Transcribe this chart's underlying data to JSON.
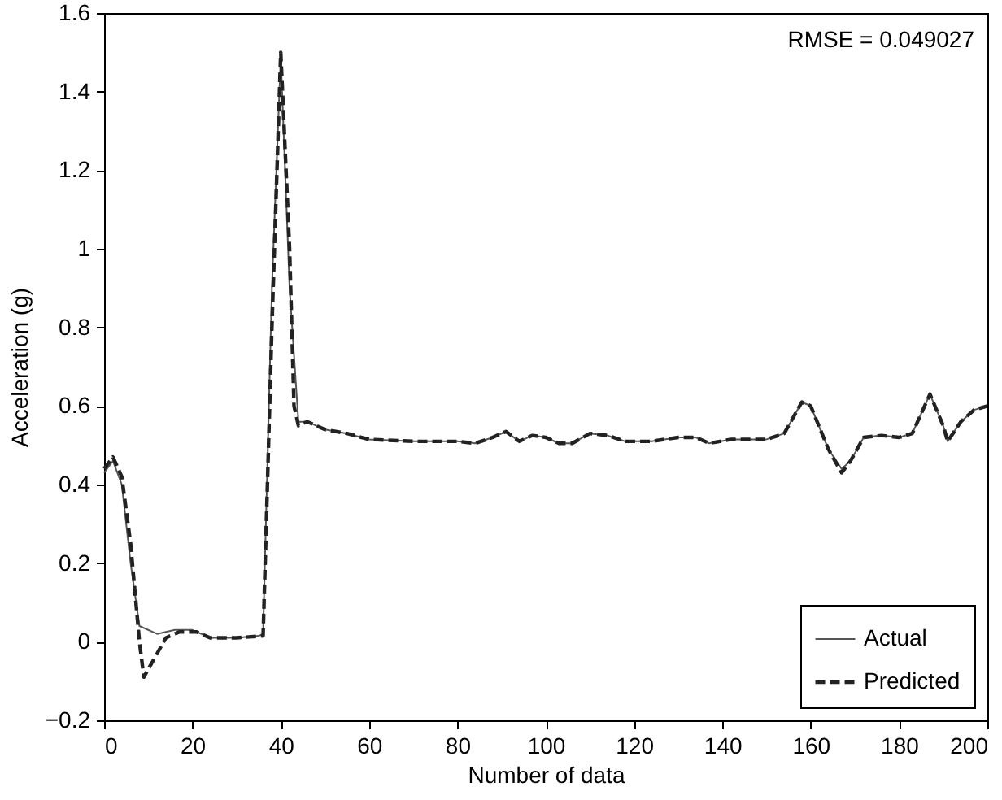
{
  "chart_data": {
    "type": "line",
    "xlabel": "Number of data",
    "ylabel": "Acceleration (g)",
    "xlim": [
      0,
      200
    ],
    "ylim": [
      -0.2,
      1.6
    ],
    "xticks": [
      0,
      20,
      40,
      60,
      80,
      100,
      120,
      140,
      160,
      180,
      200
    ],
    "yticks": [
      -0.2,
      0,
      0.2,
      0.4,
      0.6,
      0.8,
      1,
      1.2,
      1.4,
      1.6
    ],
    "legend": "bottom right",
    "annotations": [
      "RMSE = 0.049027"
    ],
    "series": [
      {
        "name": "Actual",
        "color": "#555555",
        "line_style": "solid",
        "x": [
          0,
          2,
          4,
          6,
          8,
          12,
          16,
          20,
          24,
          30,
          35,
          36,
          38,
          40,
          42,
          44,
          46,
          50,
          55,
          60,
          70,
          80,
          84,
          88,
          91,
          94,
          97,
          100,
          103,
          106,
          110,
          114,
          118,
          124,
          130,
          134,
          137,
          142,
          150,
          154,
          158,
          160,
          164,
          167,
          169,
          172,
          176,
          180,
          183,
          187,
          190,
          191,
          194,
          197,
          200
        ],
        "values": [
          0.43,
          0.46,
          0.4,
          0.2,
          0.04,
          0.02,
          0.03,
          0.03,
          0.01,
          0.01,
          0.015,
          0.02,
          0.9,
          1.49,
          0.9,
          0.56,
          0.56,
          0.54,
          0.53,
          0.515,
          0.51,
          0.51,
          0.505,
          0.52,
          0.535,
          0.51,
          0.525,
          0.52,
          0.505,
          0.505,
          0.53,
          0.525,
          0.51,
          0.51,
          0.52,
          0.52,
          0.505,
          0.515,
          0.515,
          0.53,
          0.61,
          0.6,
          0.49,
          0.44,
          0.46,
          0.52,
          0.525,
          0.52,
          0.53,
          0.63,
          0.55,
          0.51,
          0.56,
          0.59,
          0.6
        ]
      },
      {
        "name": "Predicted",
        "color": "#222222",
        "line_style": "dashed",
        "x": [
          0,
          2,
          4,
          6,
          8,
          9,
          11,
          14,
          17,
          21,
          24,
          30,
          36,
          38,
          40,
          42,
          43,
          44,
          46,
          50,
          55,
          60,
          70,
          80,
          84,
          88,
          91,
          94,
          97,
          100,
          103,
          106,
          110,
          114,
          118,
          124,
          130,
          134,
          137,
          142,
          150,
          154,
          158,
          160,
          164,
          167,
          169,
          172,
          176,
          180,
          183,
          187,
          190,
          191,
          194,
          197,
          200
        ],
        "values": [
          0.44,
          0.47,
          0.42,
          0.25,
          0.0,
          -0.09,
          -0.05,
          0.01,
          0.025,
          0.025,
          0.01,
          0.01,
          0.015,
          0.8,
          1.5,
          1.0,
          0.6,
          0.55,
          0.56,
          0.54,
          0.53,
          0.515,
          0.51,
          0.51,
          0.505,
          0.52,
          0.535,
          0.51,
          0.525,
          0.52,
          0.505,
          0.505,
          0.53,
          0.525,
          0.51,
          0.51,
          0.52,
          0.52,
          0.505,
          0.515,
          0.515,
          0.53,
          0.61,
          0.6,
          0.49,
          0.43,
          0.46,
          0.52,
          0.525,
          0.52,
          0.53,
          0.63,
          0.55,
          0.51,
          0.56,
          0.59,
          0.6
        ]
      }
    ]
  }
}
